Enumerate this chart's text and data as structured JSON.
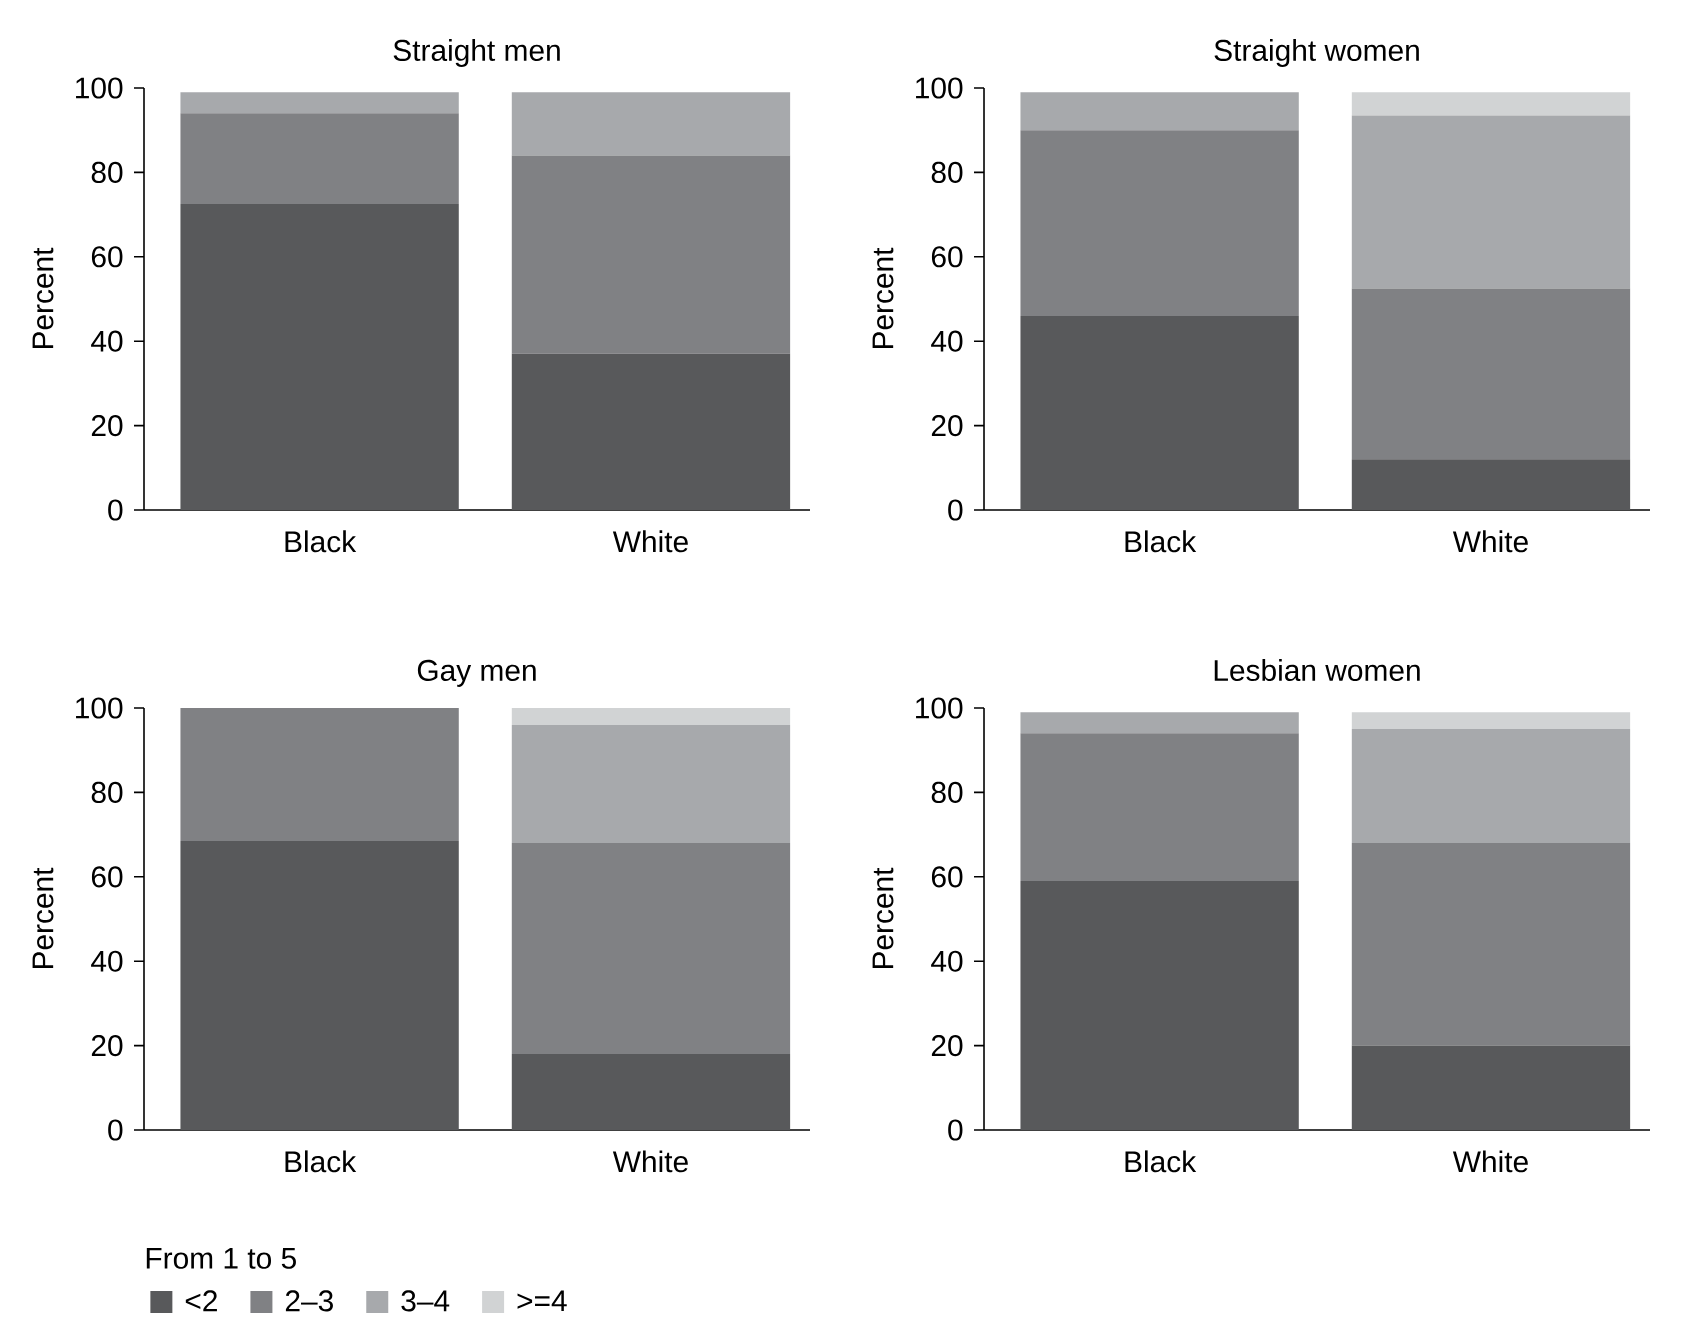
{
  "chart_data": [
    {
      "type": "bar",
      "stacked": true,
      "title": "Straight men",
      "ylabel": "Percent",
      "categories": [
        "Black",
        "White"
      ],
      "ylim": [
        0,
        100
      ],
      "yticks": [
        0,
        20,
        40,
        60,
        80,
        100
      ],
      "series": [
        {
          "color": "#58595b",
          "values": [
            72.5,
            37
          ]
        },
        {
          "color": "#808184",
          "values": [
            21.5,
            47
          ]
        },
        {
          "color": "#a7a9ac",
          "values": [
            5,
            15
          ]
        },
        {
          "color": "#d1d3d4",
          "values": [
            0,
            0
          ]
        }
      ]
    },
    {
      "type": "bar",
      "stacked": true,
      "title": "Straight women",
      "ylabel": "Percent",
      "categories": [
        "Black",
        "White"
      ],
      "ylim": [
        0,
        100
      ],
      "yticks": [
        0,
        20,
        40,
        60,
        80,
        100
      ],
      "series": [
        {
          "color": "#58595b",
          "values": [
            46,
            12
          ]
        },
        {
          "color": "#808184",
          "values": [
            44,
            40.5
          ]
        },
        {
          "color": "#a7a9ac",
          "values": [
            9,
            41
          ]
        },
        {
          "color": "#d1d3d4",
          "values": [
            0,
            5.5
          ]
        }
      ]
    },
    {
      "type": "bar",
      "stacked": true,
      "title": "Gay men",
      "ylabel": "Percent",
      "categories": [
        "Black",
        "White"
      ],
      "ylim": [
        0,
        100
      ],
      "yticks": [
        0,
        20,
        40,
        60,
        80,
        100
      ],
      "legend": "bottom",
      "legend_title": "From 1 to 5",
      "series": [
        {
          "name": "<2",
          "color": "#58595b",
          "values": [
            68.5,
            18
          ]
        },
        {
          "name": "2–3",
          "color": "#808184",
          "values": [
            31.5,
            50
          ]
        },
        {
          "name": "3–4",
          "color": "#a7a9ac",
          "values": [
            0,
            28
          ]
        },
        {
          "name": ">=4",
          "color": "#d1d3d4",
          "values": [
            0,
            4
          ]
        }
      ]
    },
    {
      "type": "bar",
      "stacked": true,
      "title": "Lesbian women",
      "ylabel": "Percent",
      "categories": [
        "Black",
        "White"
      ],
      "ylim": [
        0,
        100
      ],
      "yticks": [
        0,
        20,
        40,
        60,
        80,
        100
      ],
      "series": [
        {
          "color": "#58595b",
          "values": [
            59,
            20
          ]
        },
        {
          "color": "#808184",
          "values": [
            35,
            48
          ]
        },
        {
          "color": "#a7a9ac",
          "values": [
            5,
            27
          ]
        },
        {
          "color": "#d1d3d4",
          "values": [
            0,
            4
          ]
        }
      ]
    }
  ]
}
